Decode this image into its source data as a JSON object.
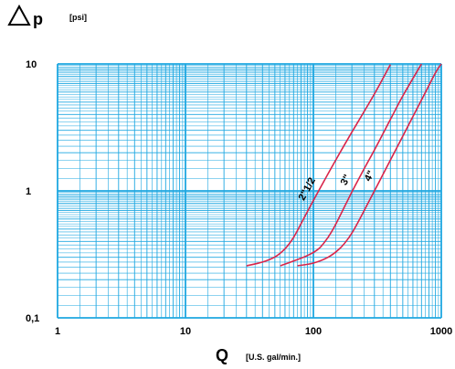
{
  "chart_data": {
    "type": "line",
    "title": "",
    "y_symbol": "p",
    "y_unit": "[psi]",
    "x_symbol": "Q",
    "x_unit": "[U.S. gal/min.]",
    "x_scale": "log",
    "y_scale": "log",
    "xlim": [
      1,
      1000
    ],
    "ylim": [
      0.1,
      10
    ],
    "grid": true,
    "x_ticks": [
      {
        "value": 1,
        "label": "1"
      },
      {
        "value": 10,
        "label": "10"
      },
      {
        "value": 100,
        "label": "100"
      },
      {
        "value": 1000,
        "label": "1000"
      }
    ],
    "y_ticks": [
      {
        "value": 0.1,
        "label": "0,1"
      },
      {
        "value": 1,
        "label": "1"
      },
      {
        "value": 10,
        "label": "10"
      }
    ],
    "series": [
      {
        "name": "2\"1/2",
        "color": "#d9254a",
        "points": [
          [
            30,
            0.257
          ],
          [
            40,
            0.275
          ],
          [
            50,
            0.302
          ],
          [
            60,
            0.35
          ],
          [
            70,
            0.43
          ],
          [
            80,
            0.55
          ],
          [
            100,
            0.84
          ],
          [
            150,
            1.76
          ],
          [
            200,
            2.9
          ],
          [
            300,
            5.8
          ],
          [
            400,
            9.9
          ]
        ]
      },
      {
        "name": "3\"",
        "color": "#d9254a",
        "points": [
          [
            55,
            0.257
          ],
          [
            70,
            0.28
          ],
          [
            90,
            0.31
          ],
          [
            110,
            0.35
          ],
          [
            130,
            0.43
          ],
          [
            150,
            0.55
          ],
          [
            200,
            0.98
          ],
          [
            250,
            1.5
          ],
          [
            300,
            2.1
          ],
          [
            400,
            3.65
          ],
          [
            500,
            5.6
          ],
          [
            700,
            10.0
          ]
        ]
      },
      {
        "name": "4\"",
        "color": "#d9254a",
        "points": [
          [
            75,
            0.257
          ],
          [
            100,
            0.27
          ],
          [
            130,
            0.3
          ],
          [
            160,
            0.35
          ],
          [
            190,
            0.43
          ],
          [
            220,
            0.55
          ],
          [
            300,
            1.0
          ],
          [
            400,
            1.75
          ],
          [
            500,
            2.7
          ],
          [
            700,
            5.2
          ],
          [
            900,
            8.5
          ],
          [
            1000,
            10.0
          ]
        ]
      }
    ]
  }
}
